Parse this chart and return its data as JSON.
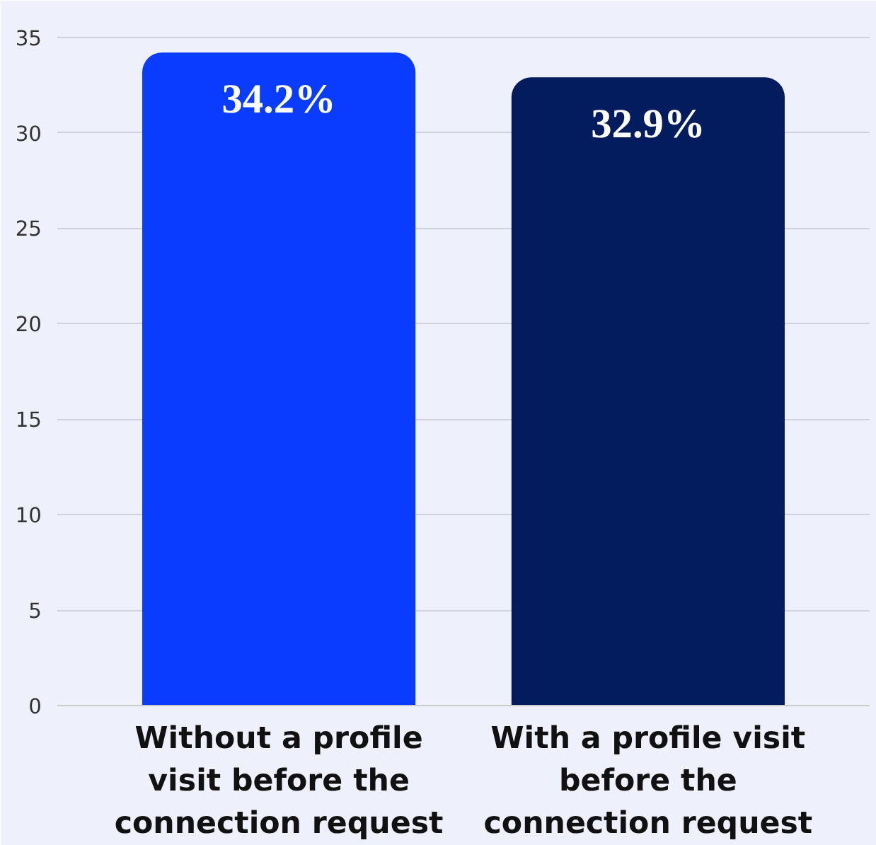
{
  "chart_data": {
    "type": "bar",
    "categories": [
      "Without a profile\nvisit before the\nconnection request",
      "With a profile visit\nbefore the\nconnection request"
    ],
    "values": [
      34.2,
      32.9
    ],
    "colors": [
      "#0a3cff",
      "#021c5e"
    ],
    "value_labels": [
      "34.2%",
      "32.9%"
    ],
    "ylim": [
      0,
      35
    ],
    "yticks": [
      0,
      5,
      10,
      15,
      20,
      25,
      30,
      35
    ],
    "grid": "y"
  }
}
